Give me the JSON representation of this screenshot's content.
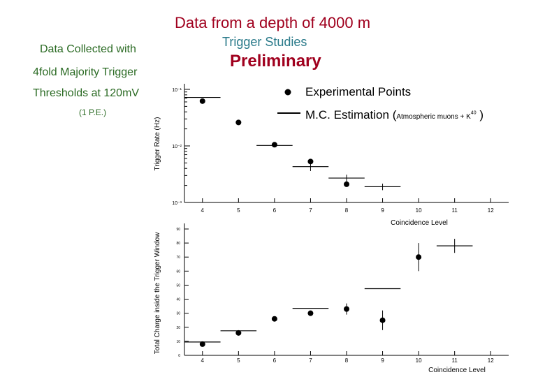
{
  "titles": {
    "main": "Data from a depth of 4000 m",
    "sub": "Trigger Studies",
    "preliminary": "Preliminary"
  },
  "notes": {
    "line1": "Data Collected with",
    "line2": "4fold Majority Trigger",
    "line3": "Thresholds at 120mV",
    "line4": "(1 P.E.)"
  },
  "legend": {
    "points": "Experimental Points",
    "mc": "M.C. Estimation (",
    "mc_detail": "Atmospheric muons + K",
    "mc_sup": "40",
    "mc_close": " )"
  },
  "chart_data": [
    {
      "type": "scatter",
      "name": "trigger-rate",
      "xlabel": "Coincidence Level",
      "ylabel": "Trigger Rate (Hz)",
      "xlim": [
        3.5,
        12.5
      ],
      "ylim": [
        0.001,
        0.1
      ],
      "yscale": "log",
      "x_ticks": [
        "4",
        "5",
        "6",
        "7",
        "8",
        "9",
        "10",
        "11",
        "12"
      ],
      "y_ticks": [
        {
          "value": 0.1,
          "label": "10⁻¹"
        },
        {
          "value": 0.01,
          "label": "10⁻²"
        },
        {
          "value": 0.001,
          "label": "10⁻³"
        }
      ],
      "series": [
        {
          "name": "Experimental Points",
          "style": "points",
          "x": [
            4,
            5,
            6,
            7,
            8
          ],
          "y": [
            0.062,
            0.026,
            0.0105,
            0.0053,
            0.0021
          ]
        },
        {
          "name": "M.C. Estimation",
          "style": "segments",
          "x": [
            4,
            5,
            6,
            7,
            8,
            9
          ],
          "y": [
            0.072,
            null,
            0.0102,
            0.0043,
            0.0027,
            0.0019
          ],
          "err": [
            0,
            0,
            0,
            0.0007,
            0.0004,
            0.00025
          ]
        }
      ]
    },
    {
      "type": "scatter",
      "name": "total-charge",
      "xlabel": "Coincidence Level",
      "ylabel": "Total Charge inside the Trigger Window",
      "xlim": [
        3.5,
        12.5
      ],
      "ylim": [
        0,
        90
      ],
      "x_ticks": [
        "4",
        "5",
        "6",
        "7",
        "8",
        "9",
        "10",
        "11",
        "12"
      ],
      "y_ticks": [
        "0",
        "10",
        "20",
        "30",
        "40",
        "50",
        "60",
        "70",
        "80",
        "90"
      ],
      "series": [
        {
          "name": "Experimental Points",
          "style": "points",
          "x": [
            4,
            5,
            6,
            7,
            8,
            9,
            10
          ],
          "y": [
            8,
            16,
            26,
            30,
            33,
            25,
            70
          ],
          "err": [
            0,
            0,
            0,
            0,
            4,
            7,
            10
          ]
        },
        {
          "name": "M.C. Estimation",
          "style": "segments",
          "x": [
            4,
            5,
            7,
            9,
            11
          ],
          "y": [
            9.5,
            17.5,
            33.5,
            47.5,
            78
          ],
          "err": [
            0,
            0,
            0,
            0,
            5
          ]
        }
      ]
    }
  ]
}
